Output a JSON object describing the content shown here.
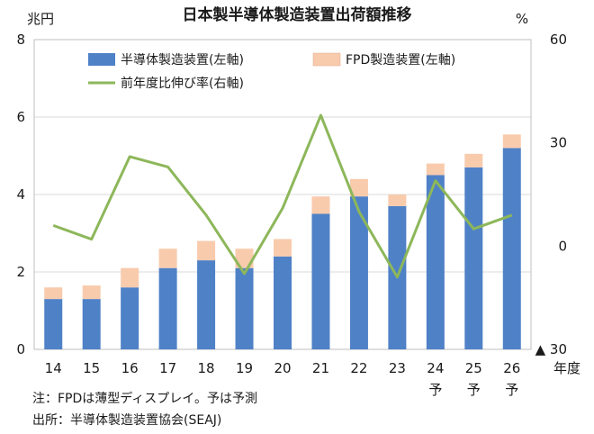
{
  "chart_data": {
    "type": "bar",
    "title": "日本製半導体製造装置出荷額推移",
    "left_unit": "兆円",
    "right_unit": "%",
    "x_axis_label": "年度",
    "categories": [
      "14",
      "15",
      "16",
      "17",
      "18",
      "19",
      "20",
      "21",
      "22",
      "23",
      "24",
      "25",
      "26"
    ],
    "category_sublabels": [
      "",
      "",
      "",
      "",
      "",
      "",
      "",
      "",
      "",
      "",
      "予",
      "予",
      "予"
    ],
    "series": [
      {
        "name": "半導体製造装置(左軸)",
        "type": "stacked-bar",
        "axis": "left",
        "color": "#4f81c7",
        "values": [
          1.3,
          1.3,
          1.6,
          2.1,
          2.3,
          2.1,
          2.4,
          3.5,
          3.95,
          3.7,
          4.5,
          4.7,
          5.2
        ]
      },
      {
        "name": "FPD製造装置(左軸)",
        "type": "stacked-bar",
        "axis": "left",
        "color": "#f8cbad",
        "values": [
          0.3,
          0.35,
          0.5,
          0.5,
          0.5,
          0.5,
          0.45,
          0.45,
          0.45,
          0.3,
          0.3,
          0.35,
          0.35
        ]
      },
      {
        "name": "前年度比伸び率(右軸)",
        "type": "line",
        "axis": "right",
        "color": "#8db75a",
        "values": [
          6,
          2,
          26,
          23,
          9,
          -8,
          11,
          38,
          10,
          -9,
          19,
          5,
          9
        ]
      }
    ],
    "left_axis": {
      "min": 0,
      "max": 8,
      "ticks": [
        "0",
        "2",
        "4",
        "6",
        "8"
      ]
    },
    "right_axis": {
      "min": -30,
      "max": 60,
      "ticks": [
        "▲ 30",
        "0",
        "30",
        "60"
      ],
      "tick_values": [
        -30,
        0,
        30,
        60
      ]
    },
    "gridlines": true,
    "legend_position": "top-left"
  },
  "notes": {
    "note": "注：FPDは薄型ディスプレイ。予は予測",
    "source": "出所：半導体製造装置協会(SEAJ)"
  }
}
